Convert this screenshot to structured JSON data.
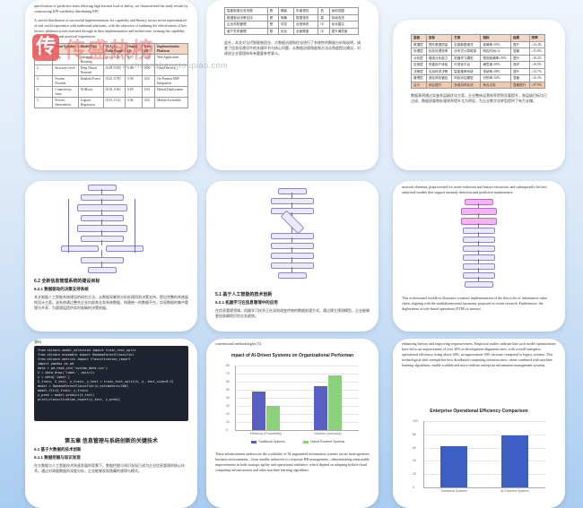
{
  "watermark": {
    "logo_char": "传",
    "name": "传盛热榜",
    "url": "www.chuanshengtoupiao.com"
  },
  "card1": {
    "para1": "specification of predictive traits allowing high fraction load of ability, we characterized the study results by constructing KPI variability distributing KPI.",
    "para2": "A careful distribution of successful implementations for capability and fluency across seven representative of real world experience with traditional platforms, with the objective of outlining the effectiveness of key factors, platform scores assessed through in their implementation and architecture, existing the capability rating and traditional practical experiences.",
    "table_headers": [
      "Failure Mode",
      "Input Variable",
      "Model Type",
      "SLA (v) Value Range",
      "Output (d)",
      "Cost (d)",
      "Implementation Platform"
    ],
    "rows": [
      [
        "1",
        "App",
        "Adaptive Boosting",
        "[0.12, 0.45]",
        "0.87",
        "0.05",
        "Web Application"
      ],
      [
        "2",
        "Structure Level",
        "Deep Neural Network",
        "[0.23, 0.61]",
        "0.88",
        "0.04",
        "Cloud Service"
      ],
      [
        "3",
        "System Fixation",
        "Random Forest",
        "[0.25, 0.78]",
        "0.90",
        "0.03",
        "On-Premise ERP Integration"
      ],
      [
        "4",
        "Connectivity Issue",
        "XGBoost",
        "[0.18, 0.56]",
        "0.89",
        "0.04",
        "Hybrid Deployment"
      ],
      [
        "5",
        "Process Intervention",
        "Logistic Regression",
        "[0.15, 0.52]",
        "0.86",
        "0.05",
        "Mobile Accessible"
      ]
    ]
  },
  "card2": {
    "rows": [
      [
        "智能制造业务流程",
        "是",
        "确保",
        "年度规划",
        "低",
        "适用范围"
      ],
      [
        "数据驱动决策支持",
        "是",
        "明确",
        "数据规范",
        "高",
        "持续改进"
      ],
      [
        "企业风险管理",
        "是",
        "可控",
        "合规审查",
        "中",
        "优化建议"
      ],
      [
        "客户关系管理",
        "是",
        "优化",
        "全面覆盖",
        "中",
        "提升满意度"
      ]
    ],
    "para": "此外，本文对当代智能制造业、大数据治理和优化进行了系统性的数据分析和说明，调查了信息化建设中的关键环节与核心问题，从数据治理角度和方法论角度提出建议，对改进企业管理体系有重要参考意义。"
  },
  "card3": {
    "table_headers": [
      "层级",
      "目标",
      "方案",
      "指标",
      "结果",
      "效率"
    ],
    "rows": [
      [
        "数据层",
        "提升数据质量",
        "实施数据清洗",
        "准确率≥95%",
        "提升",
        "≥12.4%"
      ],
      [
        "处理层",
        "优化处理效率",
        "分布式计算框架",
        "响应时间≤2s",
        "显著",
        "≥15.8%"
      ],
      [
        "分析层",
        "增强分析能力",
        "机器学习模型",
        "预测准确率≥90%",
        "提升",
        "≥18.2%"
      ],
      [
        "应用层",
        "改善用户体验",
        "可视化平台",
        "满意度≥85%",
        "良好",
        "≥10.5%"
      ],
      [
        "决策层",
        "支持科学决策",
        "智能推荐系统",
        "采纳率≥80%",
        "提升",
        "≥14.7%"
      ],
      [
        "管理层",
        "强化风险管控",
        "风险评估模型",
        "识别率≥92%",
        "显著",
        "≥16.3%"
      ]
    ],
    "summary_row": [
      "合计",
      "综合提升",
      "多维协同优化",
      "综合达标",
      "显著提升",
      "≥87.9%"
    ],
    "para": "数据表明通过实施多层级优化方案，企业整体运营效率得到显著提升，各层级目标均已达成，数据质量和处理效率提升尤为明显，为企业数字化转型提供了有力支撑。"
  },
  "card4": {
    "heading1": "6.2 全新信息管理系统的建设目标",
    "heading2": "6.2.1 数据驱动的决策支持系统",
    "para": "本文根据人工智能系统建设的研究方法，从数据采集到分析处理再到决策支持，提出完整的系统架构设计方案。该系统通过整合企业内部各业务系统数据，构建统一的数据平台，实现数据的集中管理与共享，为管理层提供实时准确的决策依据。"
  },
  "card5": {
    "heading1": "5.1 基于人工智能的技术创新",
    "heading2": "5.2.1 机器学习在信息管理中的应用",
    "para": "在信息管理领域，机器学习技术正在深刻改变传统的数据处理方式，通过建立预测模型，企业能够更加准确地识别业务趋势。"
  },
  "card6": {
    "para1": "network elements, preprocessed for noise-reduction and feature extraction, and subsequently fed into analytical models that support anomaly detection and predictive maintenance.",
    "para2": "This orchestrated workflow illustrates a mature implementation of the lifecycles of information value chain, aligning with the multidimensional taxonomy proposed in recent research. Furthermore, the deployment of rule-based operations (ETM) to interact."
  },
  "card7": {
    "code_label": "源码",
    "code": [
      "from sklearn.model_selection import train_test_split",
      "from sklearn.ensemble import RandomForestClassifier",
      "from sklearn.metrics import classification_report",
      "import pandas as pd",
      "",
      "data = pd.read_csv('system_data.csv')",
      "X = data.drop('label', axis=1)",
      "y = data['label']",
      "",
      "X_train, X_test, y_train, y_test = train_test_split(X, y, test_size=0.2)",
      "model = RandomForestClassifier(n_estimators=100)",
      "model.fit(X_train, y_train)",
      "",
      "y_pred = model.predict(X_test)",
      "print(classification_report(y_test, y_pred))"
    ],
    "chapter": "第五章 信息管理与系统创新的关键技术",
    "heading1": "5.1 基于大数据的技术创新",
    "heading2": "5.1.1 数据挖掘与知识发现",
    "para": "在大数据与人工智能技术快速发展的背景下，数据挖掘与知识发现已成为企业信息管理的核心技术。通过对海量数据的深度分析，企业能够发现隐藏的规律与模式。"
  },
  "card8": {
    "intro": "conventional methodologies [3].",
    "para": "These advancements underscore the scalability of AI-augmented information systems across heterogeneous business environments—from smaller industries to corporate HR management—demonstrating measurable improvements in both strategic agility and operational resilience, which depend on adapting hybrid-cloud computing infrastructures and other machine learning algorithms."
  },
  "card9": {
    "para1": "enhancing literacy and improving responsiveness. Empirical studies indicate that such model optimizations have led to an improvement of over 30% in development alignment rates, with overall enterprise operational efficiency rising above 40%, an approximate 30% increase compared to legacy systems. This technological shift exemplifies how distributed computing infrastructures, when combined with machine learning algorithms, enable scalable and more resilient enterprise information management systems."
  },
  "chart_data": [
    {
      "type": "bar",
      "title": "mpact of AI-Driven Systems on Organizational Performan",
      "categories": [
        "Efficiency (Productivity)",
        "Decision (Accuracy)"
      ],
      "series": [
        {
          "name": "Traditional Systems",
          "values": [
            48,
            55
          ],
          "color": "#5a5fc4"
        },
        {
          "name": "Hybrid-Powered Systems",
          "values": [
            30,
            68
          ],
          "color": "#8bd07a"
        }
      ],
      "ylim": [
        0,
        80
      ],
      "yticks": [
        0,
        10,
        20,
        30,
        40,
        50,
        60,
        70,
        80
      ],
      "legend": "bottom"
    },
    {
      "type": "bar",
      "title": "Enterprise Operational Efficiency Comparison",
      "categories": [
        "Traditional Systems",
        "AI-Powered Systems"
      ],
      "values": [
        62,
        78
      ],
      "color": "#3d5fc4",
      "ylim": [
        0,
        100
      ],
      "yticks": [
        0,
        20,
        40,
        60,
        80,
        100
      ]
    }
  ]
}
